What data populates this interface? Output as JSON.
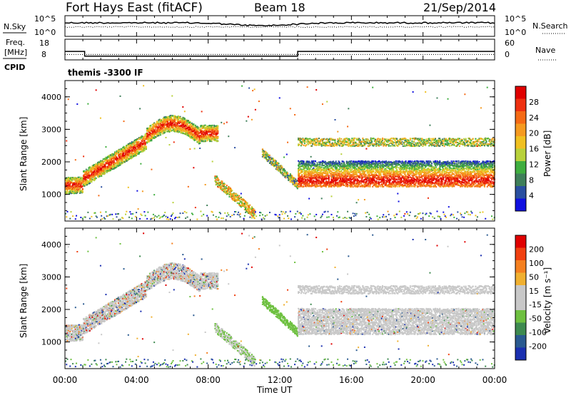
{
  "header": {
    "site": "Fort Hays East (fitACF)",
    "beam": "Beam 18",
    "date": "21/Sep/2014"
  },
  "strip": {
    "nsky_label": "N.Sky",
    "nsky_ticks": [
      "10^5",
      "10^0"
    ],
    "nsearch_label": "N.Search",
    "freq_label_1": "Freq.",
    "freq_label_2": "[MHz]",
    "freq_ticks": [
      "18",
      "8"
    ],
    "nave_label": "Nave",
    "nave_ticks": [
      "60",
      "0"
    ],
    "cpid_label": "CPID",
    "cpid_text": "themis -3300 IF"
  },
  "colors": {
    "power_scale": [
      "#1010e0",
      "#2a4fa0",
      "#3f7f5a",
      "#3fae3f",
      "#b8d13a",
      "#f0c020",
      "#f59a20",
      "#f56a15",
      "#ee3010",
      "#e00000"
    ],
    "velocity_scale": [
      "#1a2fb0",
      "#2a5a90",
      "#3e8a50",
      "#6ec040",
      "#c8c8c8",
      "#c8c8c8",
      "#f0b030",
      "#f58020",
      "#f04010",
      "#e00000"
    ]
  },
  "chart_data": [
    {
      "type": "heatmap",
      "name": "power",
      "ylabel": "Slant Range [km]",
      "yticks": [
        "4000",
        "3000",
        "2000",
        "1000"
      ],
      "xticks": [
        "00:00",
        "04:00",
        "08:00",
        "12:00",
        "16:00",
        "20:00",
        "00:00"
      ],
      "xlabel": "Time UT",
      "colorbar_label": "Power [dB]",
      "colorbar_ticks": [
        "28",
        "24",
        "20",
        "16",
        "12",
        "8",
        "4"
      ],
      "ylim": [
        180,
        4500
      ],
      "xlim_hours": [
        0,
        24
      ],
      "bands": [
        {
          "t0": 0.0,
          "t1": 1.0,
          "r0": 1250,
          "r1": 1300,
          "level": 8
        },
        {
          "t0": 1.0,
          "t1": 4.5,
          "r0": 1500,
          "r1": 2650,
          "level": 8
        },
        {
          "t0": 4.5,
          "t1": 7.5,
          "r0": 2700,
          "r1": 3200,
          "level": 5
        },
        {
          "t0": 8.5,
          "t1": 10.5,
          "r0": 1200,
          "r1": 500,
          "level": 6
        },
        {
          "t0": 11.0,
          "t1": 13.0,
          "r0": 2200,
          "r1": 1300,
          "level": 5
        },
        {
          "t0": 13.0,
          "t1": 24.0,
          "r0": 1550,
          "r1": 1550,
          "level": 9
        }
      ]
    },
    {
      "type": "heatmap",
      "name": "velocity",
      "ylabel": "Slant Range [km]",
      "yticks": [
        "4000",
        "3000",
        "2000",
        "1000"
      ],
      "xticks": [
        "00:00",
        "04:00",
        "08:00",
        "12:00",
        "16:00",
        "20:00",
        "00:00"
      ],
      "xlabel": "Time UT",
      "colorbar_label": "Velocity [m s⁻¹]",
      "colorbar_ticks": [
        "200",
        "100",
        "50",
        "15",
        "-15",
        "-50",
        "-100",
        "-200"
      ],
      "ylim": [
        180,
        4500
      ],
      "xlim_hours": [
        0,
        24
      ]
    }
  ]
}
